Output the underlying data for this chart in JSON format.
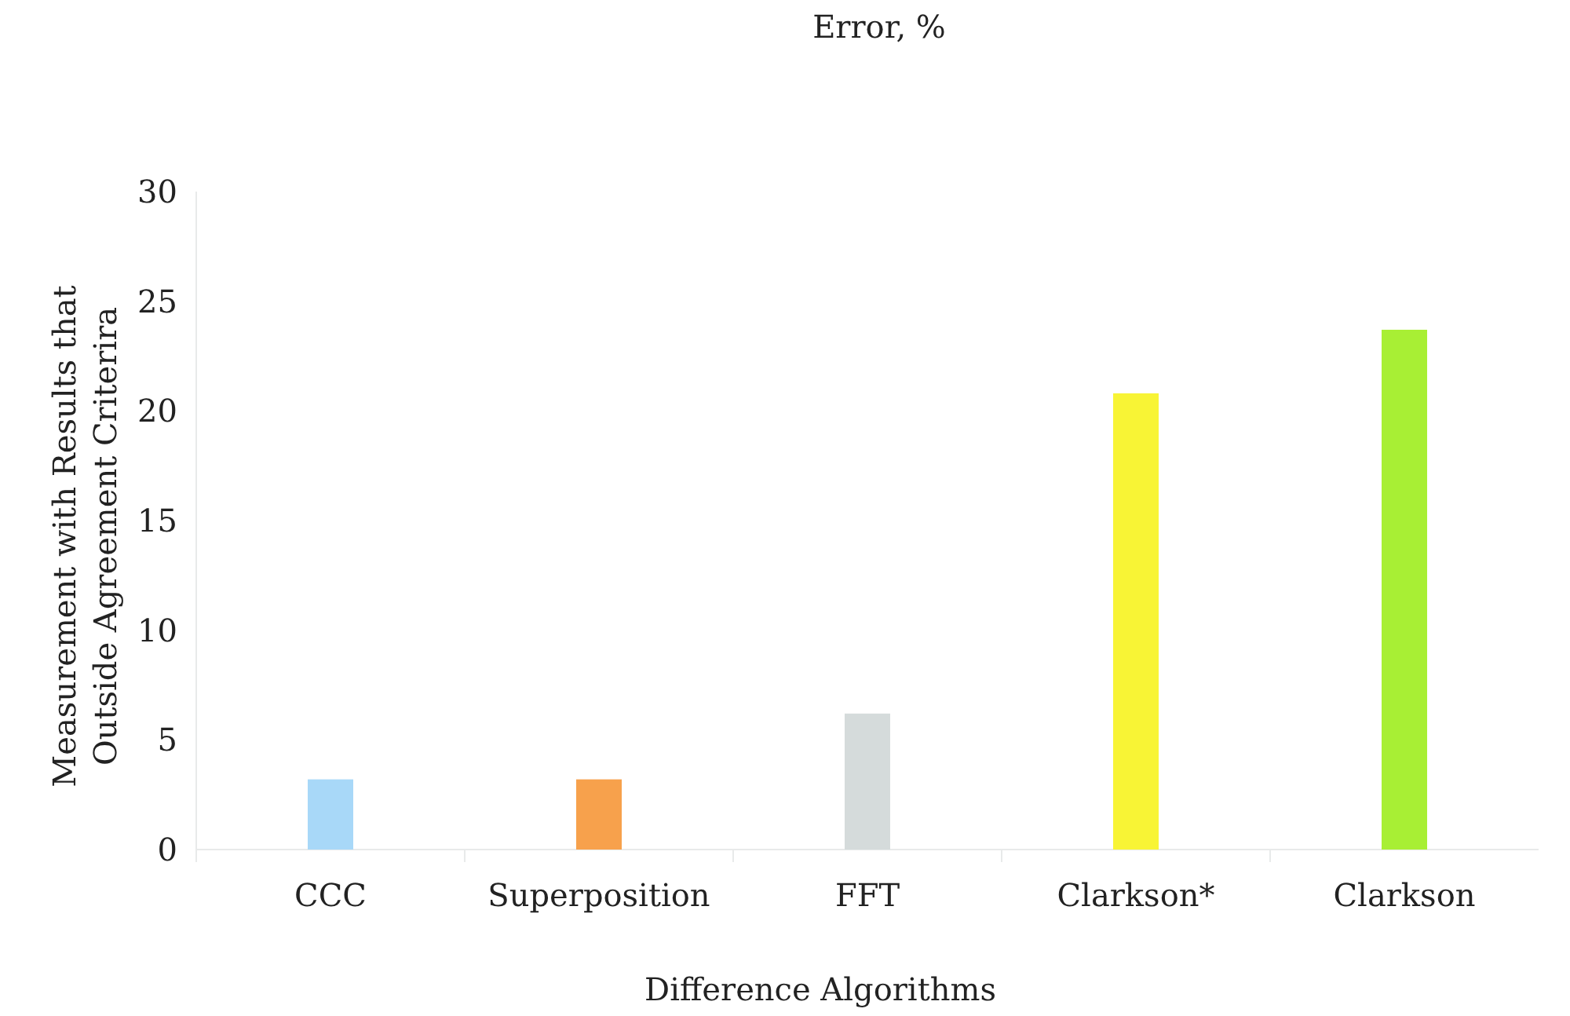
{
  "chart_data": {
    "type": "bar",
    "title": "Error, %",
    "xlabel": "Difference Algorithms",
    "ylabel": "Measurement with Results that Outside Agreement Criterira",
    "categories": [
      "CCC",
      "Superposition",
      "FFT",
      "Clarkson*",
      "Clarkson"
    ],
    "values": [
      3.2,
      3.2,
      6.2,
      20.8,
      23.7
    ],
    "colors": [
      "#a8d8f8",
      "#f7a14c",
      "#d5dbdb",
      "#f8f435",
      "#a8ef34"
    ],
    "ylim": [
      0,
      30
    ],
    "yticks": [
      0,
      5,
      10,
      15,
      20,
      25,
      30
    ]
  }
}
